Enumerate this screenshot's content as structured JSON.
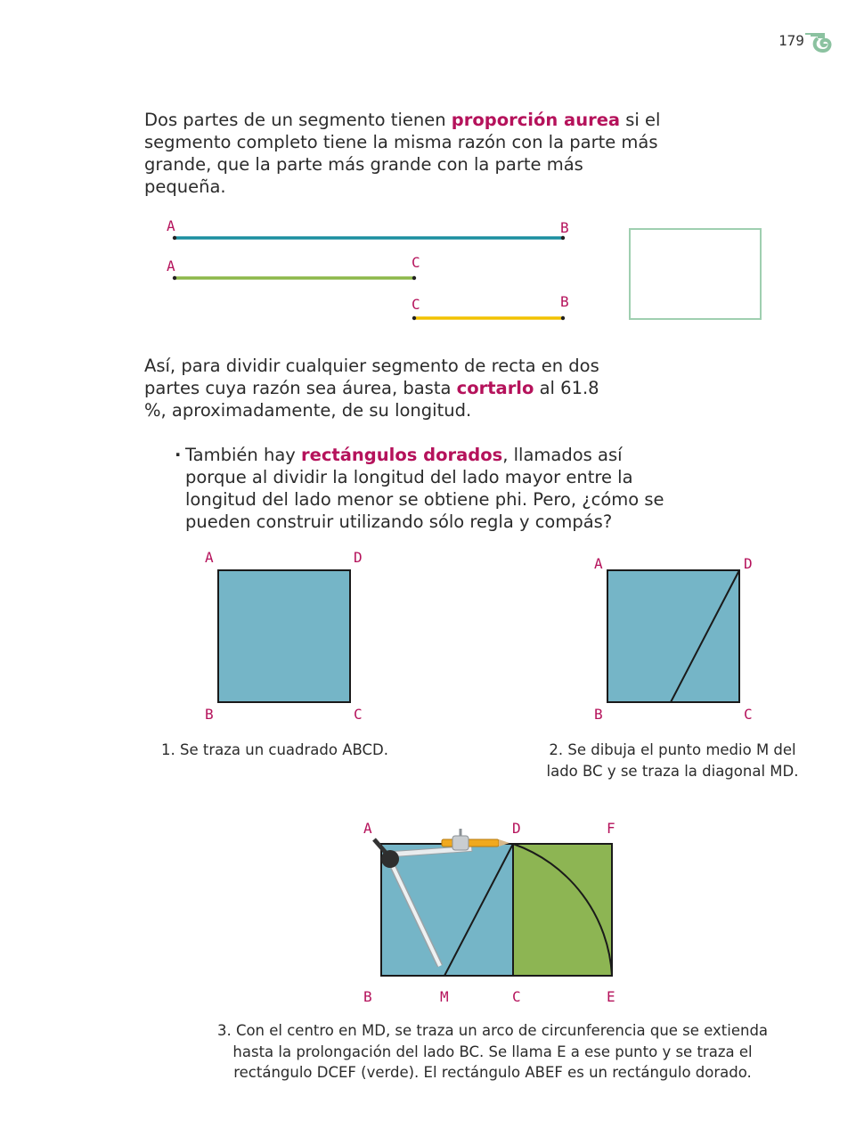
{
  "header": {
    "page_number": "179",
    "ornament_color": "#8bc2a0"
  },
  "intro": {
    "before": "Dos partes de un segmento tienen ",
    "term": "proporción aurea",
    "after": " si el segmento completo tiene la misma razón con la parte más grande, que la parte más grande con la parte más pequeña."
  },
  "segments": {
    "labels": {
      "top_a": "A",
      "top_b": "B",
      "mid_a": "A",
      "mid_c": "C",
      "bot_c": "C",
      "bot_b": "B"
    },
    "colors": {
      "ab": "#1b8fa0",
      "ac": "#8db84a",
      "cb": "#f2c200",
      "box": "#9fcfb0"
    }
  },
  "paragraph2": {
    "before": "Así, para dividir cualquier segmento de recta en dos partes cuya razón sea áurea, basta ",
    "term": "cortarlo",
    "after": " al 61.8 %, aproximadamente, de su longitud."
  },
  "bullet": {
    "marker": "·",
    "before": "También hay ",
    "term": "rectángulos dorados",
    "after": ", llamados así porque al dividir la longitud del lado mayor entre la longitud del lado menor se obtiene phi. Pero, ¿cómo se pueden construir utilizando sólo regla y compás?"
  },
  "figure1": {
    "labels": {
      "a": "A",
      "d": "D",
      "b": "B",
      "c": "C"
    },
    "caption": "1. Se traza un cuadrado ABCD.",
    "fill": "#75b5c7"
  },
  "figure2": {
    "labels": {
      "a": "A",
      "d": "D",
      "b": "B",
      "c": "C"
    },
    "caption_line1": "2. Se dibuja el punto medio M del",
    "caption_line2": "lado BC y se traza la diagonal MD.",
    "fill": "#75b5c7"
  },
  "figure3": {
    "labels": {
      "a": "A",
      "d": "D",
      "f": "F",
      "b": "B",
      "m": "M",
      "c": "C",
      "e": "E"
    },
    "caption_line1": "3. Con el centro en MD, se traza un arco de circunferencia que se extienda",
    "caption_line2": "hasta la prolongación del lado BC. Se llama E a ese punto y se traza el",
    "caption_line3": "rectángulo DCEF (verde). El rectángulo ABEF es un rectángulo dorado.",
    "fill_square": "#75b5c7",
    "fill_green": "#8db553"
  }
}
